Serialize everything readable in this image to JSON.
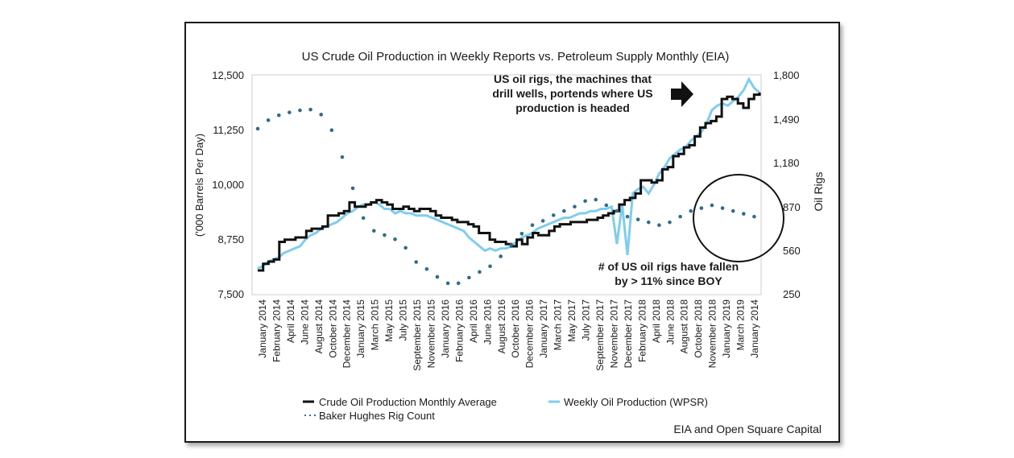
{
  "chart_data": {
    "type": "line",
    "title": "US Crude Oil Production in Weekly Reports vs. Petroleum Supply Monthly (EIA)",
    "ylabel": "('000 Barrels Per Day)",
    "y2label": "Oil Rigs",
    "ylim": [
      7500,
      12500
    ],
    "y2lim": [
      250,
      1800
    ],
    "yticks": [
      "12,500",
      "11,250",
      "10,000",
      "8,750",
      "7,500"
    ],
    "y2ticks": [
      "1,800",
      "1,490",
      "1,180",
      "870",
      "560",
      "250"
    ],
    "xlabels": [
      "January 2014",
      "February 2014",
      "April 2014",
      "June 2014",
      "August 2014",
      "October 2014",
      "December 2014",
      "January 2015",
      "March 2015",
      "May 2015",
      "July 2015",
      "September 2015",
      "November 2015",
      "January 2016",
      "February 2016",
      "April 2016",
      "June 2016",
      "August 2016",
      "October 2016",
      "December 2016",
      "January 2017",
      "March 2017",
      "May 2017",
      "July 2017",
      "September 2017",
      "November 2017",
      "December 2017",
      "February 2018",
      "April 2018",
      "June 2018",
      "August 2018",
      "October 2018",
      "November 2018",
      "January 2019",
      "March 2019",
      "January 2014"
    ],
    "series": [
      {
        "name": "Crude Oil Production Monthly Average",
        "color": "#111111",
        "style": "step",
        "values": [
          8050,
          8200,
          8250,
          8300,
          8700,
          8750,
          8750,
          8800,
          8800,
          8950,
          9000,
          9000,
          9050,
          9300,
          9300,
          9350,
          9400,
          9600,
          9500,
          9500,
          9550,
          9600,
          9650,
          9600,
          9550,
          9450,
          9450,
          9500,
          9450,
          9400,
          9450,
          9450,
          9400,
          9300,
          9250,
          9250,
          9200,
          9150,
          9150,
          9100,
          9050,
          8900,
          8900,
          8750,
          8700,
          8700,
          8650,
          8600,
          8750,
          8650,
          8800,
          8900,
          8850,
          8850,
          8950,
          9050,
          9100,
          9100,
          9150,
          9150,
          9150,
          9200,
          9200,
          9250,
          9300,
          9350,
          9400,
          9550,
          9650,
          9700,
          9800,
          10100,
          10100,
          10050,
          10100,
          10350,
          10400,
          10650,
          10700,
          10850,
          10900,
          11100,
          11300,
          11400,
          11450,
          11550,
          11950,
          12000,
          11950,
          11850,
          11750,
          11950,
          12050,
          12100
        ]
      },
      {
        "name": "Weekly Oil Production (WPSR)",
        "color": "#7ecdf0",
        "style": "line",
        "values": [
          8100,
          8150,
          8250,
          8300,
          8350,
          8450,
          8500,
          8550,
          8600,
          8750,
          8850,
          8900,
          9000,
          9050,
          9100,
          9150,
          9250,
          9350,
          9400,
          9500,
          9550,
          9550,
          9600,
          9550,
          9450,
          9450,
          9350,
          9400,
          9350,
          9350,
          9300,
          9300,
          9300,
          9250,
          9200,
          9150,
          9100,
          9050,
          9000,
          8950,
          8800,
          8700,
          8600,
          8500,
          8550,
          8500,
          8550,
          8550,
          8600,
          8700,
          8800,
          8850,
          8900,
          9000,
          9050,
          9100,
          9150,
          9200,
          9250,
          9250,
          9300,
          9350,
          9350,
          9400,
          9400,
          9450,
          9450,
          9500,
          8650,
          9550,
          8400,
          9800,
          9900,
          9950,
          9800,
          10000,
          10250,
          10400,
          10600,
          10700,
          10800,
          10850,
          11000,
          11100,
          11200,
          11400,
          11700,
          11800,
          11850,
          11800,
          11900,
          12000,
          12150,
          12400,
          12200,
          12100
        ]
      },
      {
        "name": "Baker Hughes Rig Count",
        "color": "#2e6e8a",
        "style": "dots",
        "values": [
          1420,
          1455,
          1480,
          1505,
          1515,
          1525,
          1535,
          1540,
          1550,
          1560,
          1555,
          1540,
          1520,
          1470,
          1410,
          1330,
          1220,
          1100,
          1000,
          900,
          790,
          730,
          700,
          680,
          670,
          650,
          640,
          620,
          580,
          520,
          480,
          460,
          430,
          400,
          375,
          350,
          330,
          320,
          330,
          350,
          370,
          390,
          410,
          420,
          450,
          470,
          520,
          560,
          600,
          640,
          680,
          710,
          740,
          750,
          770,
          790,
          810,
          830,
          840,
          850,
          870,
          890,
          910,
          930,
          920,
          900,
          880,
          860,
          840,
          830,
          800,
          790,
          780,
          770,
          760,
          750,
          740,
          750,
          760,
          780,
          800,
          820,
          840,
          850,
          860,
          870,
          880,
          870,
          860,
          850,
          840,
          830,
          820,
          810,
          800,
          790
        ]
      }
    ],
    "annotations": [
      "US oil rigs, the machines that",
      "drill wells, portends where US",
      "production is headed",
      "# of US oil rigs have fallen",
      "by > 11% since BOY"
    ],
    "legend": [
      "Crude Oil Production Monthly Average",
      "Weekly Oil Production (WPSR)",
      "Baker Hughes Rig Count"
    ],
    "source": "EIA and Open Square Capital"
  }
}
